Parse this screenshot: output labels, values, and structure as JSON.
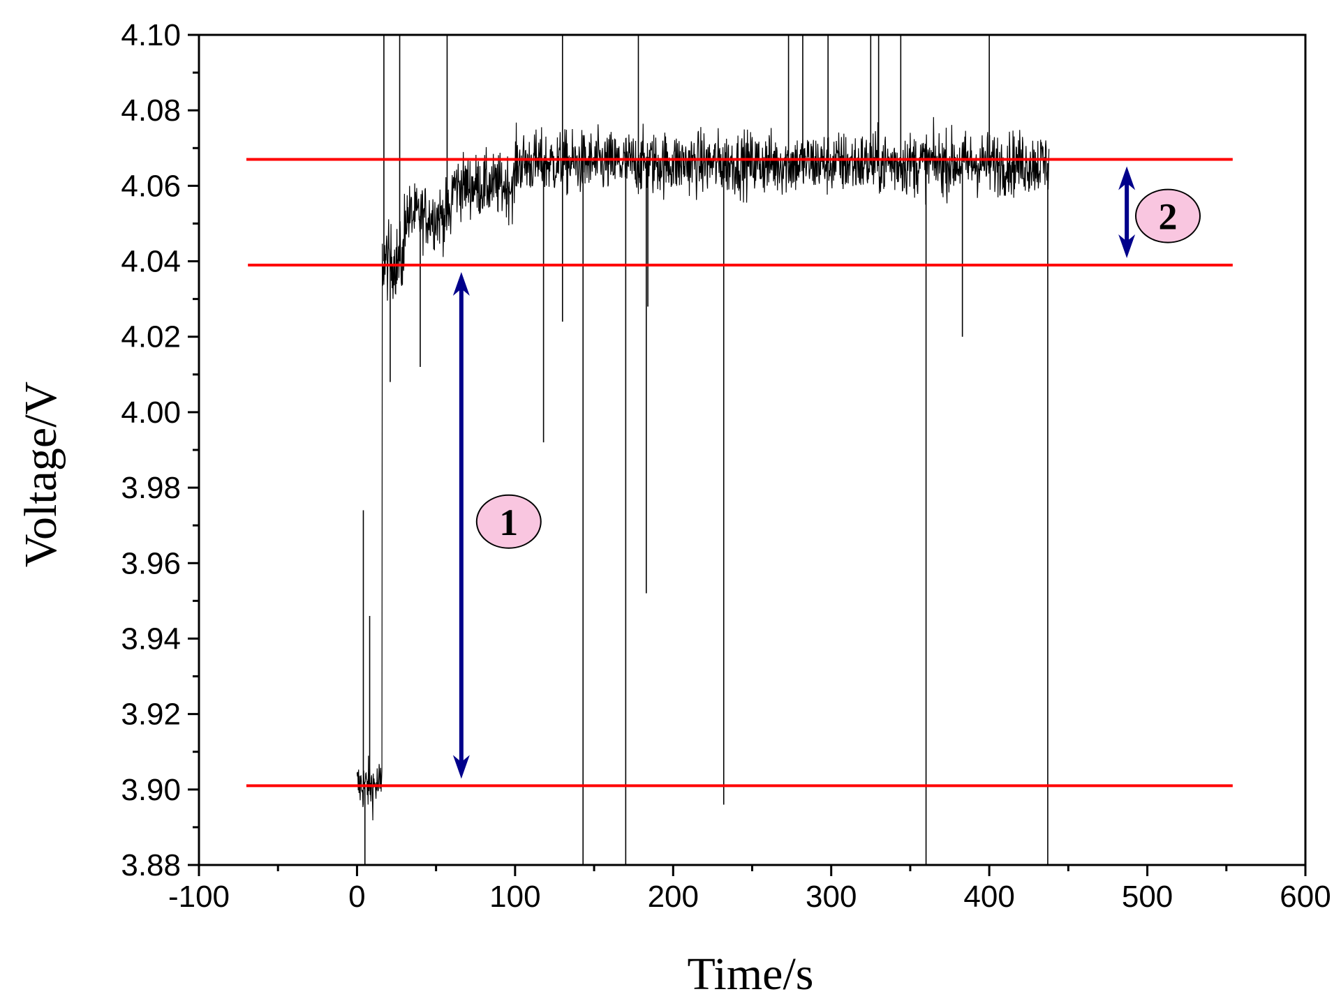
{
  "chart_data": {
    "type": "line",
    "title": "",
    "xlabel": "Time/s",
    "ylabel": "Voltage/V",
    "xlim": [
      -100,
      600
    ],
    "ylim": [
      3.88,
      4.1
    ],
    "x_ticks": [
      -100,
      0,
      100,
      200,
      300,
      400,
      500,
      600
    ],
    "x_tick_labels": [
      "-100",
      "0",
      "100",
      "200",
      "300",
      "400",
      "500",
      "600"
    ],
    "y_ticks": [
      3.88,
      3.9,
      3.92,
      3.94,
      3.96,
      3.98,
      4.0,
      4.02,
      4.04,
      4.06,
      4.08,
      4.1
    ],
    "y_tick_labels": [
      "3.88",
      "3.90",
      "3.92",
      "3.94",
      "3.96",
      "3.98",
      "4.00",
      "4.02",
      "4.04",
      "4.06",
      "4.08",
      "4.10"
    ],
    "grid": false,
    "series": [
      {
        "color": "#000000",
        "x_range": [
          0,
          438
        ],
        "description_segments": [
          {
            "x_start": 0,
            "x_end": 16,
            "mean": 3.901,
            "noise": 0.005
          },
          {
            "x_start": 16,
            "x_end": 30,
            "mean": 4.04,
            "noise": 0.007
          },
          {
            "x_start": 30,
            "x_end": 60,
            "mean": 4.052,
            "noise": 0.006
          },
          {
            "x_start": 60,
            "x_end": 100,
            "mean": 4.06,
            "noise": 0.006
          },
          {
            "x_start": 100,
            "x_end": 438,
            "mean": 4.066,
            "noise": 0.006
          }
        ],
        "spikes": [
          {
            "x": 4,
            "y": 3.974
          },
          {
            "x": 8,
            "y": 3.946
          },
          {
            "x": 5,
            "y": 3.88
          },
          {
            "x": 17,
            "y": 4.1
          },
          {
            "x": 27,
            "y": 4.1
          },
          {
            "x": 57,
            "y": 4.1
          },
          {
            "x": 130,
            "y": 4.1
          },
          {
            "x": 178,
            "y": 4.1
          },
          {
            "x": 273,
            "y": 4.1
          },
          {
            "x": 282,
            "y": 4.1
          },
          {
            "x": 298,
            "y": 4.1
          },
          {
            "x": 325,
            "y": 4.1
          },
          {
            "x": 330,
            "y": 4.1
          },
          {
            "x": 344,
            "y": 4.1
          },
          {
            "x": 400,
            "y": 4.1
          },
          {
            "x": 118,
            "y": 3.992
          },
          {
            "x": 183,
            "y": 3.952
          },
          {
            "x": 143,
            "y": 3.88
          },
          {
            "x": 170,
            "y": 3.88
          },
          {
            "x": 232,
            "y": 3.896
          },
          {
            "x": 360,
            "y": 3.88
          },
          {
            "x": 437,
            "y": 3.88
          },
          {
            "x": 21,
            "y": 4.008
          },
          {
            "x": 40,
            "y": 4.012
          },
          {
            "x": 383,
            "y": 4.02
          },
          {
            "x": 130,
            "y": 4.024
          },
          {
            "x": 184,
            "y": 4.028
          }
        ]
      }
    ],
    "reference_lines": [
      {
        "y": 4.067,
        "x_start": -70,
        "x_end": 554,
        "color": "#ff0000"
      },
      {
        "y": 4.039,
        "x_start": -69,
        "x_end": 554,
        "color": "#ff0000"
      },
      {
        "y": 3.901,
        "x_start": -70,
        "x_end": 554,
        "color": "#ff0000"
      }
    ],
    "annotations": [
      {
        "label": "1",
        "arrow_x": 66,
        "arrow_y_from": 3.901,
        "arrow_y_to": 4.039,
        "text_x": 96,
        "text_y": 3.971,
        "arrow_color": "#00008b"
      },
      {
        "label": "2",
        "arrow_x": 487,
        "arrow_y_from": 4.039,
        "arrow_y_to": 4.067,
        "text_x": 513,
        "text_y": 4.052,
        "arrow_color": "#00008b"
      }
    ],
    "marker_fill": "#f9c6e0",
    "axis_color": "#000000"
  }
}
